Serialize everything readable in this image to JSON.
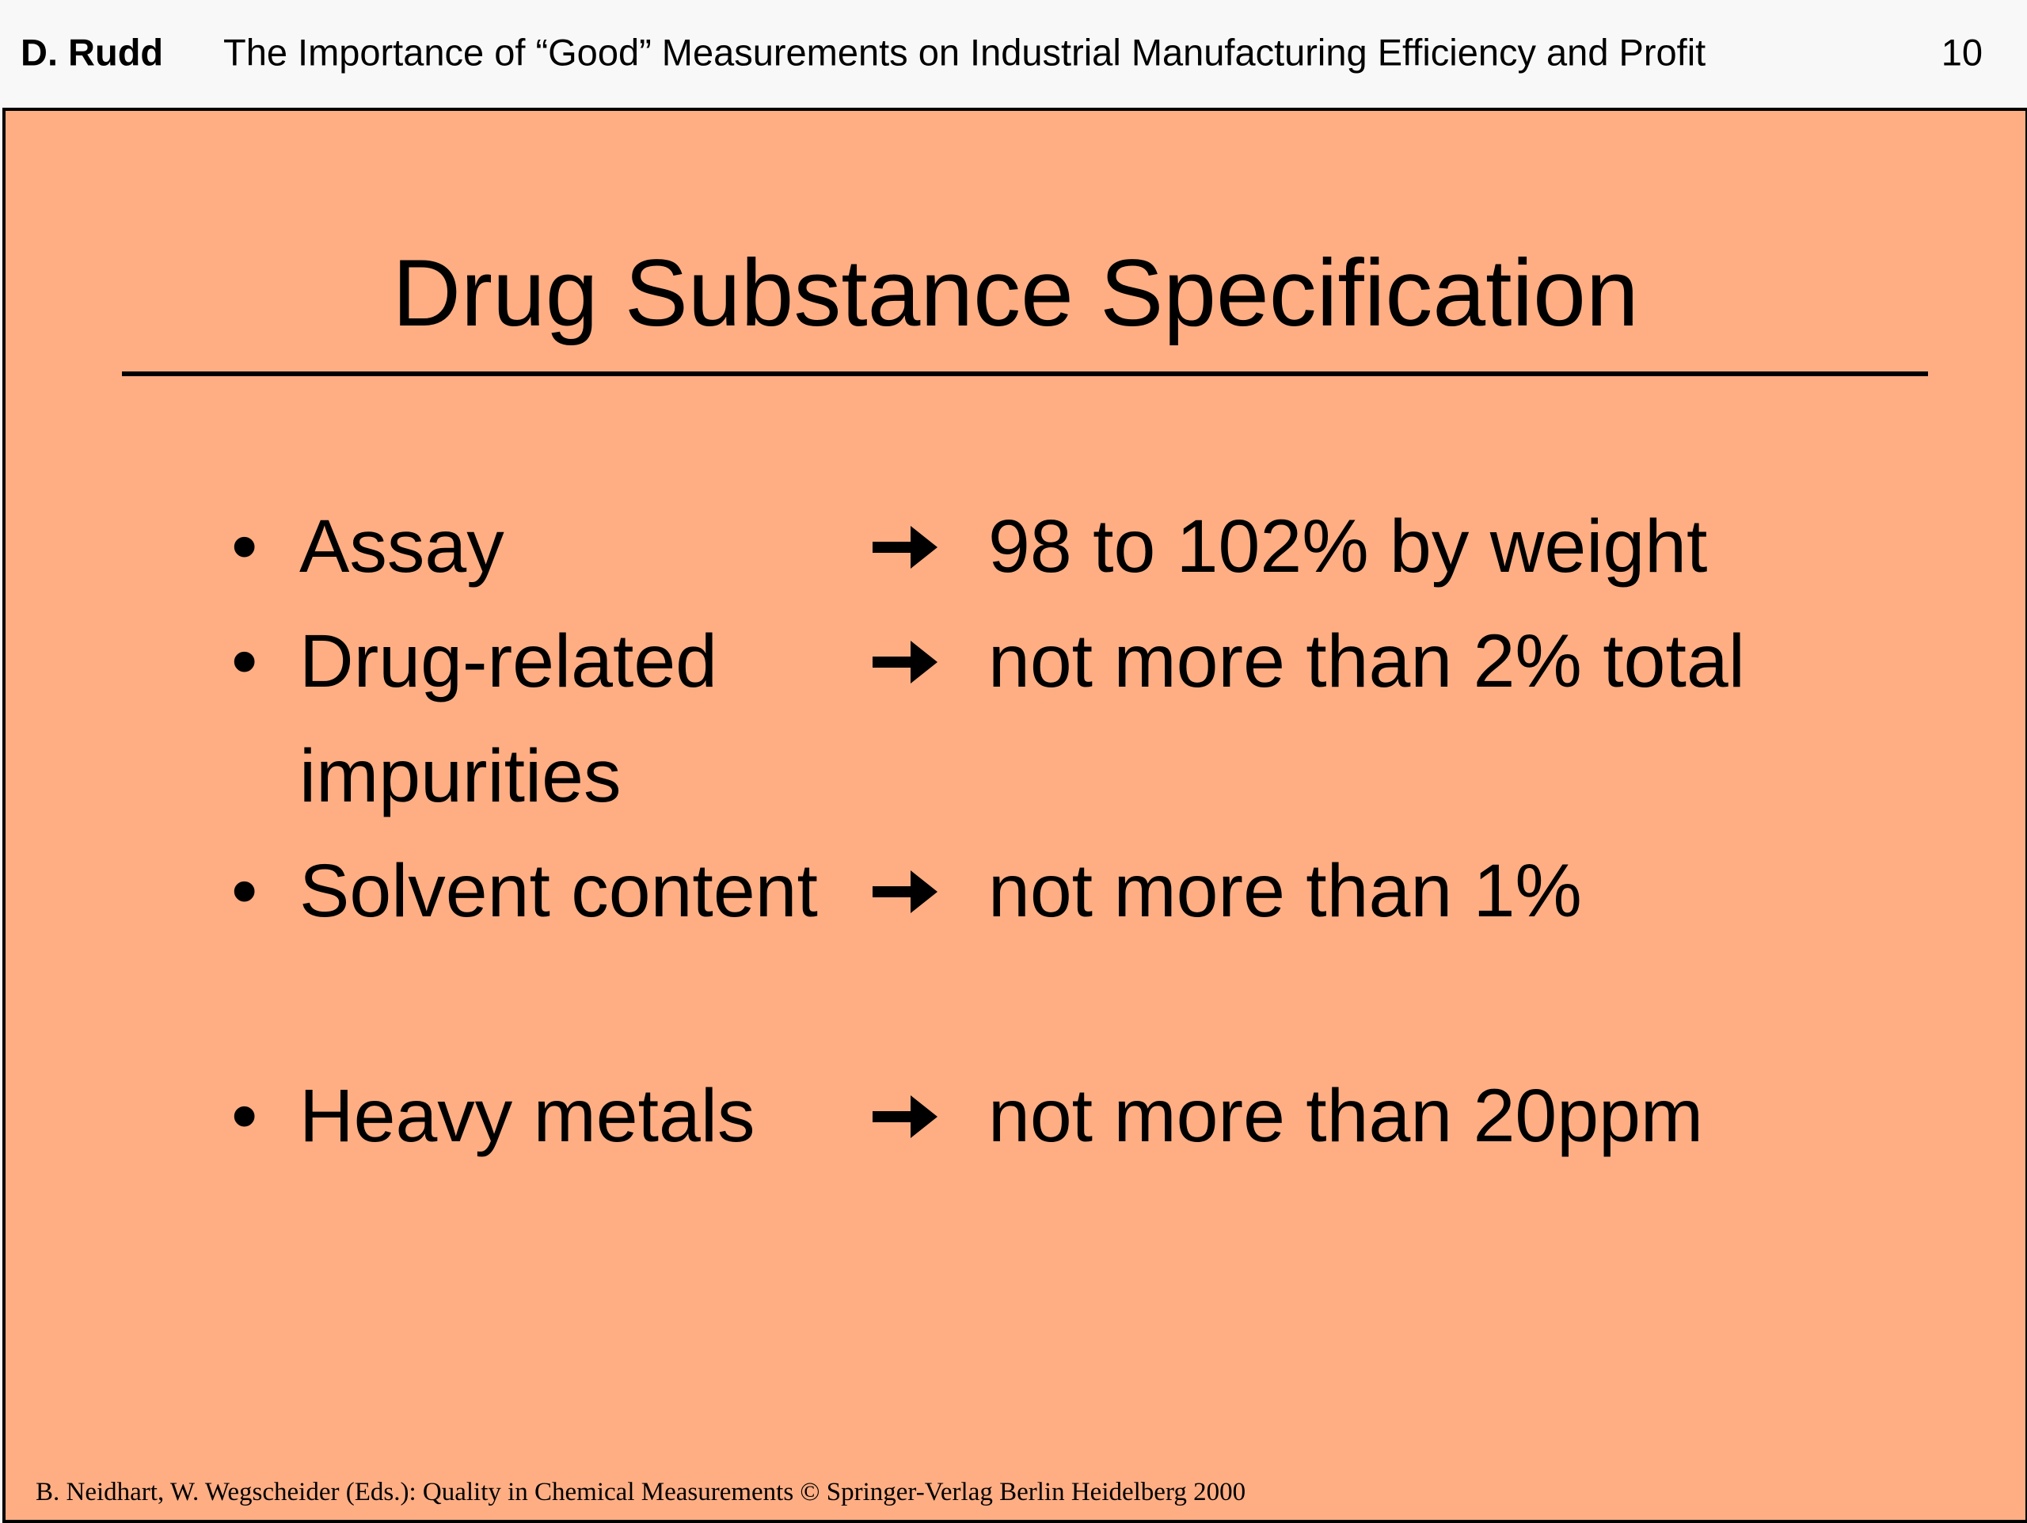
{
  "header": {
    "author": "D. Rudd",
    "title": "The Importance of “Good” Measurements on Industrial Manufacturing Efficiency and Profit",
    "page": "10"
  },
  "slide": {
    "title": "Drug Substance Specification",
    "items": [
      {
        "label": "Assay",
        "value": "98 to 102% by weight"
      },
      {
        "label": "Drug-related impurities",
        "value": "not more than 2% total"
      },
      {
        "label": "Solvent content",
        "value": "not more than 1%"
      },
      {
        "label": "Heavy metals",
        "value": "not more than 20ppm"
      }
    ]
  },
  "footer": "B. Neidhart, W. Wegscheider (Eds.): Quality in Chemical Measurements © Springer-Verlag Berlin Heidelberg 2000"
}
